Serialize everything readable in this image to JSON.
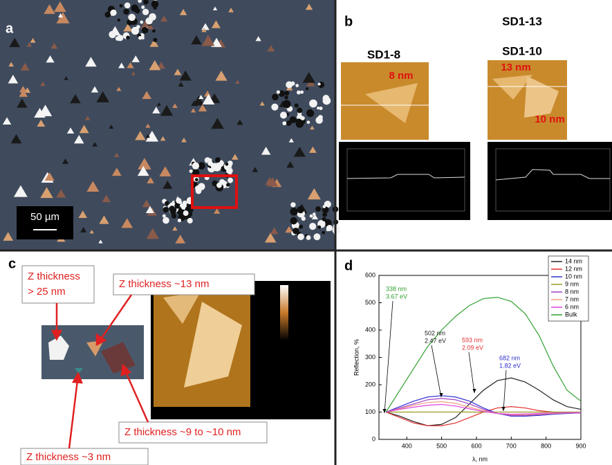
{
  "panels": {
    "a": {
      "label": "a",
      "scale_bar": "50 µm"
    },
    "b": {
      "label": "b",
      "samples": [
        "SD1-13",
        "SD1-8",
        "SD1-10"
      ],
      "thickness_labels": [
        "8 nm",
        "13 nm",
        "10 nm"
      ]
    },
    "c": {
      "label": "c",
      "callouts": [
        [
          "Z thickness",
          "> 25 nm"
        ],
        [
          "Z thickness ~13 nm"
        ],
        [
          "Z thickness ~9 to ~10 nm"
        ],
        [
          "Z thickness ~3 nm"
        ]
      ]
    }
  },
  "chart_data": {
    "type": "line",
    "label": "d",
    "x_label": "λ, nm",
    "y_label": "Reflection, %",
    "x": [
      340,
      380,
      420,
      460,
      500,
      540,
      580,
      620,
      660,
      700,
      740,
      780,
      820,
      860,
      900
    ],
    "series": [
      {
        "name": "14 nm",
        "color": "#222222",
        "values": [
          100,
          85,
          65,
          50,
          55,
          80,
          130,
          180,
          215,
          225,
          210,
          180,
          145,
          120,
          110
        ]
      },
      {
        "name": "12 nm",
        "color": "#e03030",
        "values": [
          100,
          80,
          60,
          50,
          50,
          60,
          80,
          100,
          115,
          120,
          115,
          105,
          100,
          98,
          97
        ]
      },
      {
        "name": "10 nm",
        "color": "#3030d0",
        "values": [
          100,
          120,
          140,
          155,
          160,
          155,
          140,
          115,
          95,
          85,
          85,
          88,
          92,
          95,
          97
        ]
      },
      {
        "name": "9 nm",
        "color": "#9a9a20",
        "values": [
          100,
          100,
          100,
          100,
          100,
          100,
          100,
          100,
          100,
          100,
          100,
          100,
          100,
          100,
          100
        ]
      },
      {
        "name": "8 nm",
        "color": "#a040c0",
        "values": [
          100,
          115,
          130,
          145,
          150,
          145,
          130,
          110,
          95,
          88,
          88,
          90,
          94,
          96,
          97
        ]
      },
      {
        "name": "7 nm",
        "color": "#f0a080",
        "values": [
          100,
          112,
          125,
          135,
          138,
          132,
          118,
          105,
          95,
          90,
          90,
          93,
          95,
          97,
          98
        ]
      },
      {
        "name": "6 nm",
        "color": "#e040e0",
        "values": [
          100,
          110,
          118,
          125,
          128,
          122,
          112,
          102,
          95,
          92,
          93,
          95,
          97,
          98,
          98
        ]
      },
      {
        "name": "Bulk",
        "color": "#30a030",
        "values": [
          100,
          180,
          260,
          340,
          400,
          450,
          490,
          515,
          520,
          505,
          460,
          380,
          270,
          180,
          140
        ]
      }
    ],
    "annotations": [
      {
        "lines": [
          "338 nm",
          "3.67 eV"
        ],
        "color": "#30a030"
      },
      {
        "lines": [
          "502 nm",
          "2.47 eV"
        ],
        "color": "#222222"
      },
      {
        "lines": [
          "593 nm",
          "2.09 eV"
        ],
        "color": "#e03030"
      },
      {
        "lines": [
          "682 nm",
          "1.82 eV"
        ],
        "color": "#3030d0"
      }
    ],
    "xlim": [
      320,
      900
    ],
    "ylim": [
      0,
      600
    ],
    "xticks": [
      400,
      500,
      600,
      700,
      800,
      900
    ],
    "yticks": [
      0,
      100,
      200,
      300,
      400,
      500,
      600
    ],
    "legend": "upper right"
  }
}
